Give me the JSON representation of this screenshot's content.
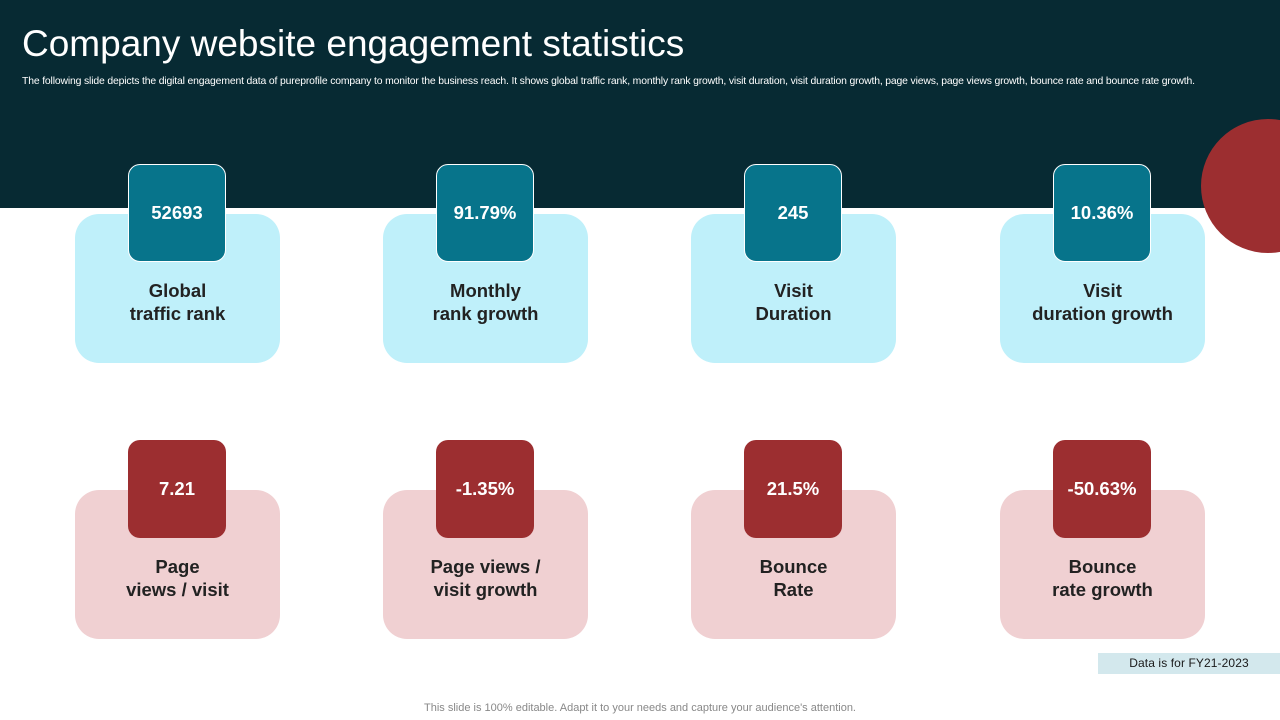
{
  "slide": {
    "title": "Company website engagement statistics",
    "subtitle": "The following slide depicts the digital engagement data of pureprofile company to monitor the business reach. It shows global traffic rank, monthly rank growth, visit duration, visit duration growth, page views, page views growth, bounce rate and bounce rate growth.",
    "data_note": "Data is for FY21-2023",
    "footer": "This slide is 100% editable. Adapt it to your needs and capture your audience's attention."
  },
  "colors": {
    "header_background": "#072a33",
    "top_badge": "#07748b",
    "top_card": "#bff0fa",
    "bottom_badge": "#9c2e30",
    "bottom_card": "#f0d0d2",
    "accent_circle": "#9c2e30"
  },
  "metrics_top": [
    {
      "value": "52693",
      "label_line1": "Global",
      "label_line2": "traffic rank"
    },
    {
      "value": "91.79%",
      "label_line1": "Monthly",
      "label_line2": "rank growth"
    },
    {
      "value": "245",
      "label_line1": "Visit",
      "label_line2": "Duration"
    },
    {
      "value": "10.36%",
      "label_line1": "Visit",
      "label_line2": "duration growth"
    }
  ],
  "metrics_bottom": [
    {
      "value": "7.21",
      "label_line1": "Page",
      "label_line2": "views / visit"
    },
    {
      "value": "-1.35%",
      "label_line1": "Page views /",
      "label_line2": "visit growth"
    },
    {
      "value": "21.5%",
      "label_line1": "Bounce",
      "label_line2": "Rate"
    },
    {
      "value": "-50.63%",
      "label_line1": "Bounce",
      "label_line2": "rate growth"
    }
  ]
}
